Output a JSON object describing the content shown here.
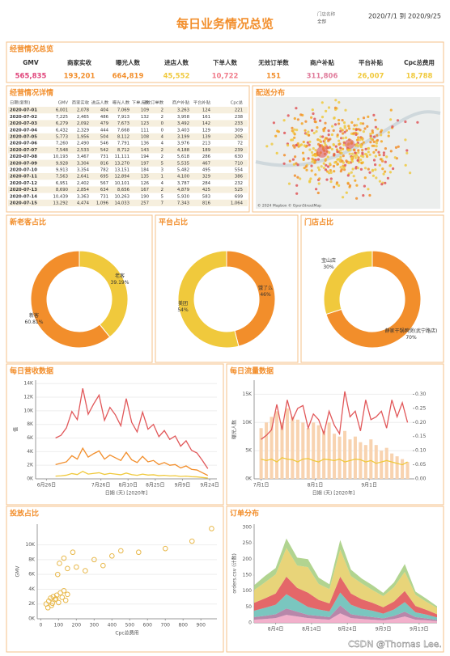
{
  "header": {
    "title": "每日业务情况总览",
    "store_label": "门店名称",
    "store_value": "全部",
    "date_range": "2020/7/1 到 2020/9/25"
  },
  "kpi": {
    "title": "经营情况总览",
    "items": [
      {
        "label": "GMV",
        "value": "565,835",
        "color": "#e0457b"
      },
      {
        "label": "商家实收",
        "value": "193,201",
        "color": "#f28e2b"
      },
      {
        "label": "曝光人数",
        "value": "664,819",
        "color": "#f28e2b"
      },
      {
        "label": "进店人数",
        "value": "45,552",
        "color": "#f0c93c"
      },
      {
        "label": "下单人数",
        "value": "10,722",
        "color": "#f07b8a"
      },
      {
        "label": "无效订单数",
        "value": "151",
        "color": "#f28e2b"
      },
      {
        "label": "商户补贴",
        "value": "311,806",
        "color": "#e07b9b"
      },
      {
        "label": "平台补贴",
        "value": "26,007",
        "color": "#f0c93c"
      },
      {
        "label": "Cpc总费用",
        "value": "18,788",
        "color": "#f0c93c"
      }
    ]
  },
  "table": {
    "title": "经营情况详情",
    "columns": [
      "日期(复制)",
      "GMV",
      "商家实收",
      "进店人数",
      "曝光人数",
      "下单人数",
      "无效订单数",
      "商户补贴",
      "平台补贴",
      "Cpc总"
    ],
    "rows": [
      [
        "2020-07-01",
        "6,001",
        "2,078",
        "404",
        "7,069",
        "109",
        "2",
        "3,263",
        "124",
        "221"
      ],
      [
        "2020-07-02",
        "7,225",
        "2,465",
        "486",
        "7,913",
        "132",
        "2",
        "3,958",
        "161",
        "238"
      ],
      [
        "2020-07-03",
        "6,279",
        "2,092",
        "479",
        "7,673",
        "123",
        "0",
        "3,492",
        "142",
        "233"
      ],
      [
        "2020-07-04",
        "6,432",
        "2,329",
        "444",
        "7,668",
        "111",
        "0",
        "3,403",
        "129",
        "309"
      ],
      [
        "2020-07-05",
        "5,773",
        "1,956",
        "504",
        "8,112",
        "108",
        "4",
        "3,199",
        "139",
        "206"
      ],
      [
        "2020-07-06",
        "7,260",
        "2,490",
        "546",
        "7,791",
        "136",
        "4",
        "3,976",
        "213",
        "72"
      ],
      [
        "2020-07-07",
        "7,548",
        "2,533",
        "542",
        "8,712",
        "143",
        "2",
        "4,188",
        "189",
        "239"
      ],
      [
        "2020-07-08",
        "10,193",
        "3,467",
        "731",
        "11,111",
        "194",
        "2",
        "5,618",
        "286",
        "630"
      ],
      [
        "2020-07-09",
        "9,928",
        "3,304",
        "816",
        "13,270",
        "197",
        "5",
        "5,535",
        "467",
        "710"
      ],
      [
        "2020-07-10",
        "9,913",
        "3,354",
        "782",
        "13,151",
        "184",
        "3",
        "5,482",
        "495",
        "554"
      ],
      [
        "2020-07-11",
        "7,563",
        "2,641",
        "695",
        "12,894",
        "135",
        "1",
        "4,100",
        "329",
        "386"
      ],
      [
        "2020-07-12",
        "6,951",
        "2,402",
        "567",
        "10,101",
        "126",
        "4",
        "3,787",
        "284",
        "232"
      ],
      [
        "2020-07-13",
        "8,690",
        "2,854",
        "634",
        "8,656",
        "167",
        "2",
        "4,879",
        "425",
        "525"
      ],
      [
        "2020-07-14",
        "10,439",
        "3,363",
        "731",
        "10,263",
        "190",
        "5",
        "5,930",
        "583",
        "699"
      ],
      [
        "2020-07-15",
        "13,292",
        "4,474",
        "1,096",
        "14,033",
        "257",
        "7",
        "7,343",
        "816",
        "1,064"
      ]
    ]
  },
  "map": {
    "title": "配送分布",
    "attribution": "© 2024 Mapbox © OpenStreetMap"
  },
  "watermark": "CSDN @Thomas Lee.",
  "chart_data": [
    {
      "type": "pie",
      "title": "新老客占比",
      "categories": [
        "老客",
        "新客"
      ],
      "values": [
        39.19,
        60.81
      ],
      "value_labels": [
        "39.19%",
        "60.81%"
      ],
      "colors": [
        "#f0c93c",
        "#f28e2b"
      ]
    },
    {
      "type": "pie",
      "title": "平台占比",
      "categories": [
        "饿了么",
        "美团"
      ],
      "values": [
        46,
        54
      ],
      "value_labels": [
        "46%",
        "54%"
      ],
      "colors": [
        "#f28e2b",
        "#f0c93c"
      ]
    },
    {
      "type": "pie",
      "title": "门店占比",
      "categories": [
        "薛家干锅鸭煲(武宁路店)",
        "宝山店"
      ],
      "values": [
        70,
        30
      ],
      "value_labels": [
        "70%",
        "30%"
      ],
      "colors": [
        "#f28e2b",
        "#f0c93c"
      ]
    },
    {
      "type": "line",
      "title": "每日营收数据",
      "xlabel": "日期 (天) [2020年]",
      "ylabel": "值",
      "x": [
        "2020-07-01",
        "2020-07-04",
        "2020-07-07",
        "2020-07-10",
        "2020-07-13",
        "2020-07-16",
        "2020-07-19",
        "2020-07-22",
        "2020-07-25",
        "2020-07-28",
        "2020-07-31",
        "2020-08-03",
        "2020-08-06",
        "2020-08-09",
        "2020-08-12",
        "2020-08-15",
        "2020-08-18",
        "2020-08-21",
        "2020-08-24",
        "2020-08-27",
        "2020-08-30",
        "2020-09-02",
        "2020-09-05",
        "2020-09-08",
        "2020-09-11",
        "2020-09-14",
        "2020-09-17",
        "2020-09-20",
        "2020-09-23"
      ],
      "series": [
        {
          "color": "#e15759",
          "values": [
            6000,
            6400,
            7500,
            9900,
            8700,
            13300,
            9500,
            11000,
            12300,
            8600,
            10500,
            9400,
            7800,
            11800,
            8300,
            6900,
            9800,
            7300,
            8000,
            6200,
            7100,
            5800,
            6300,
            4800,
            5600,
            4200,
            3800,
            2700,
            1500
          ]
        },
        {
          "color": "#f28e2b",
          "values": [
            2100,
            2300,
            2500,
            3400,
            2900,
            4500,
            3200,
            3700,
            4100,
            2900,
            3500,
            3100,
            2700,
            3900,
            2800,
            2400,
            3300,
            2500,
            2700,
            2100,
            2400,
            2000,
            2100,
            1600,
            1900,
            1400,
            1300,
            900,
            500
          ]
        },
        {
          "color": "#f0c93c",
          "values": [
            400,
            450,
            540,
            780,
            630,
            1100,
            700,
            800,
            900,
            650,
            800,
            700,
            600,
            850,
            620,
            520,
            700,
            560,
            600,
            470,
            520,
            430,
            460,
            360,
            400,
            320,
            290,
            200,
            120
          ]
        }
      ],
      "xlim": [
        "2020-06-20",
        "2020-09-28"
      ],
      "xticks": [
        {
          "value": "2020-06-26",
          "label": "6月26日"
        },
        {
          "value": "2020-07-26",
          "label": "7月26日"
        },
        {
          "value": "2020-08-10",
          "label": "8月10日"
        },
        {
          "value": "2020-08-25",
          "label": "8月25日"
        },
        {
          "value": "2020-09-09",
          "label": "9月9日"
        },
        {
          "value": "2020-09-24",
          "label": "9月24日"
        }
      ],
      "ylim": [
        0,
        14500
      ],
      "yticks": [
        {
          "value": 0,
          "label": "0K"
        },
        {
          "value": 2000,
          "label": "2K"
        },
        {
          "value": 4000,
          "label": "4K"
        },
        {
          "value": 6000,
          "label": "6K"
        },
        {
          "value": 8000,
          "label": "8K"
        },
        {
          "value": 10000,
          "label": "10K"
        },
        {
          "value": 12000,
          "label": "12K"
        },
        {
          "value": 14000,
          "label": "14K"
        }
      ],
      "grid": true
    },
    {
      "type": "line",
      "title": "每日流量数据",
      "xlabel": "日期 (天) [2020年]",
      "ylabel": "曝光人数",
      "x": [
        "2020-07-01",
        "2020-07-04",
        "2020-07-07",
        "2020-07-10",
        "2020-07-13",
        "2020-07-16",
        "2020-07-19",
        "2020-07-22",
        "2020-07-25",
        "2020-07-28",
        "2020-07-31",
        "2020-08-03",
        "2020-08-06",
        "2020-08-09",
        "2020-08-12",
        "2020-08-15",
        "2020-08-18",
        "2020-08-21",
        "2020-08-24",
        "2020-08-27",
        "2020-08-30",
        "2020-09-02",
        "2020-09-05",
        "2020-09-08",
        "2020-09-11",
        "2020-09-14",
        "2020-09-17",
        "2020-09-20",
        "2020-09-23"
      ],
      "series": [
        {
          "color": "#f8d3b0",
          "mark": "bar",
          "axis": "y2",
          "values": [
            0.18,
            0.2,
            0.22,
            0.24,
            0.2,
            0.25,
            0.22,
            0.21,
            0.2,
            0.18,
            0.2,
            0.19,
            0.17,
            0.2,
            0.16,
            0.15,
            0.17,
            0.14,
            0.15,
            0.13,
            0.12,
            0.14,
            0.12,
            0.1,
            0.11,
            0.09,
            0.08,
            0.07,
            0.06
          ]
        },
        {
          "color": "#e15759",
          "values": [
            7000,
            7700,
            8700,
            13200,
            8700,
            14000,
            10500,
            12500,
            13000,
            9000,
            11500,
            10500,
            8000,
            12000,
            9500,
            8000,
            15500,
            11000,
            12000,
            8500,
            14000,
            10500,
            11000,
            12000,
            9000,
            14000,
            11000,
            13500,
            10000
          ]
        },
        {
          "color": "#f0c93c",
          "axis": "y2",
          "values": [
            0.07,
            0.065,
            0.07,
            0.06,
            0.075,
            0.07,
            0.068,
            0.06,
            0.07,
            0.072,
            0.065,
            0.06,
            0.07,
            0.068,
            0.065,
            0.07,
            0.06,
            0.065,
            0.07,
            0.068,
            0.06,
            0.065,
            0.055,
            0.06,
            0.065,
            0.06,
            0.055,
            0.05,
            0.06
          ]
        }
      ],
      "xlim": [
        "2020-06-27",
        "2020-09-26"
      ],
      "xticks": [
        {
          "value": "2020-07-01",
          "label": "7月1日"
        },
        {
          "value": "2020-08-01",
          "label": "8月1日"
        },
        {
          "value": "2020-09-01",
          "label": "9月1日"
        }
      ],
      "ylim": [
        0,
        17500
      ],
      "yticks": [
        {
          "value": 0,
          "label": "0K"
        },
        {
          "value": 5000,
          "label": "5K"
        },
        {
          "value": 10000,
          "label": "10K"
        },
        {
          "value": 15000,
          "label": "15K"
        }
      ],
      "y2lim": [
        0,
        0.35
      ],
      "y2ticks": [
        {
          "value": 0,
          "label": "0.00"
        },
        {
          "value": 0.05,
          "label": "0.05"
        },
        {
          "value": 0.1,
          "label": "0.10"
        },
        {
          "value": 0.15,
          "label": "0.15"
        },
        {
          "value": 0.2,
          "label": "0.20"
        },
        {
          "value": 0.25,
          "label": "0.25"
        },
        {
          "value": 0.3,
          "label": "0.30"
        }
      ],
      "grid": true
    },
    {
      "type": "scatter",
      "title": "投放占比",
      "xlabel": "Cpc总费用",
      "ylabel": "GMV",
      "series": [
        {
          "color": "#e8b84a",
          "x": [
            30,
            45,
            55,
            60,
            70,
            80,
            90,
            100,
            110,
            120,
            130,
            140,
            150,
            40,
            65,
            85,
            95,
            105,
            130,
            150,
            180,
            200,
            250,
            300,
            350,
            400,
            450,
            550,
            700,
            850,
            960
          ],
          "values": [
            2000,
            2400,
            2800,
            1800,
            3000,
            2600,
            3200,
            2200,
            3500,
            2900,
            3800,
            2500,
            3300,
            1500,
            2100,
            2700,
            6000,
            7500,
            8200,
            6800,
            9000,
            7000,
            6500,
            8000,
            7200,
            8500,
            9200,
            9000,
            9500,
            10500,
            12200
          ]
        }
      ],
      "xlim": [
        -20,
        990
      ],
      "xticks": [
        0,
        100,
        200,
        300,
        400,
        500,
        600,
        700,
        800,
        900
      ],
      "ylim": [
        0,
        12800
      ],
      "yticks": [
        {
          "value": 0,
          "label": "0K"
        },
        {
          "value": 2000,
          "label": "2K"
        },
        {
          "value": 4000,
          "label": "4K"
        },
        {
          "value": 6000,
          "label": "6K"
        },
        {
          "value": 8000,
          "label": "8K"
        },
        {
          "value": 10000,
          "label": "10K"
        }
      ],
      "grid": true
    },
    {
      "type": "area",
      "title": "订单分布",
      "ylabel": "orders.csv (计数)",
      "x": [
        "2020-07-29",
        "2020-08-01",
        "2020-08-04",
        "2020-08-07",
        "2020-08-10",
        "2020-08-13",
        "2020-08-16",
        "2020-08-19",
        "2020-08-22",
        "2020-08-25",
        "2020-08-28",
        "2020-08-31",
        "2020-09-03",
        "2020-09-06",
        "2020-09-09",
        "2020-09-12",
        "2020-09-15",
        "2020-09-18"
      ],
      "series": [
        {
          "color": "#f1a7c5",
          "values": [
            10,
            12,
            15,
            25,
            20,
            15,
            12,
            10,
            30,
            15,
            12,
            10,
            8,
            12,
            20,
            10,
            8,
            5
          ]
        },
        {
          "color": "#b07aa1",
          "values": [
            8,
            10,
            12,
            20,
            15,
            10,
            10,
            8,
            25,
            12,
            10,
            8,
            6,
            10,
            15,
            8,
            6,
            4
          ]
        },
        {
          "color": "#6cc0b8",
          "values": [
            20,
            25,
            30,
            45,
            35,
            25,
            20,
            18,
            40,
            30,
            22,
            20,
            15,
            20,
            30,
            15,
            12,
            8
          ]
        },
        {
          "color": "#e15759",
          "values": [
            25,
            30,
            35,
            55,
            40,
            45,
            30,
            25,
            50,
            35,
            30,
            25,
            20,
            25,
            35,
            20,
            15,
            10
          ]
        },
        {
          "color": "#e6cf6a",
          "values": [
            40,
            50,
            60,
            90,
            70,
            80,
            50,
            45,
            85,
            55,
            50,
            40,
            35,
            45,
            60,
            35,
            25,
            20
          ]
        },
        {
          "color": "#a8cf84",
          "values": [
            15,
            20,
            20,
            30,
            25,
            25,
            20,
            15,
            30,
            20,
            15,
            15,
            10,
            15,
            25,
            10,
            10,
            5
          ]
        }
      ],
      "xlim": [
        "2020-07-29",
        "2020-09-18"
      ],
      "xticks": [
        {
          "value": "2020-08-04",
          "label": "8月4日"
        },
        {
          "value": "2020-08-14",
          "label": "8月14日"
        },
        {
          "value": "2020-08-24",
          "label": "8月24日"
        },
        {
          "value": "2020-09-03",
          "label": "9月3日"
        },
        {
          "value": "2020-09-13",
          "label": "9月13日"
        }
      ],
      "ylim": [
        0,
        310
      ],
      "yticks": [
        0,
        50,
        100,
        150,
        200,
        250,
        300
      ],
      "grid": false
    }
  ]
}
